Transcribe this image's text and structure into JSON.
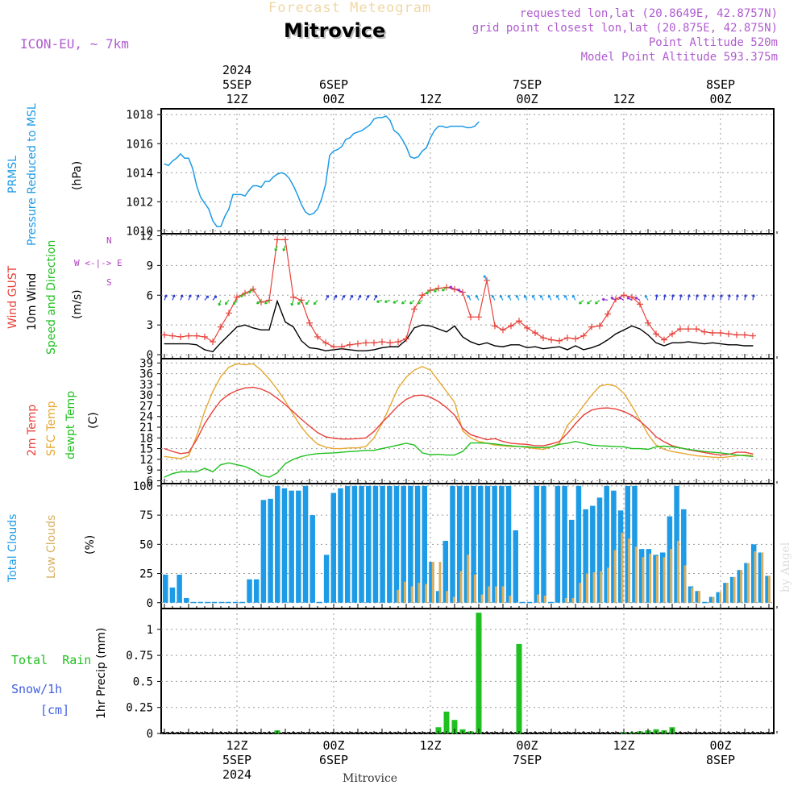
{
  "header": {
    "product_title": "Forecast Meteogram",
    "location_title": "Mitrovice",
    "model": "ICON-EU, ~ 7km",
    "requested": "requested lon,lat (20.8649E, 42.8757N)",
    "grid_point": "grid point closest lon,lat (20.875E, 42.875N)",
    "point_altitude": "Point Altitude 520m",
    "model_altitude": "Model Point Altitude 593.375m",
    "watermark": "by Angel",
    "footer_location": "Mitrovice"
  },
  "colors": {
    "pressure": "#1e9be6",
    "gust": "#e8413a",
    "wind": "#000000",
    "temp2m": "#e8413a",
    "sfc": "#e6a833",
    "dewpt": "#20c020",
    "total_clouds": "#1e9be6",
    "low_clouds": "#d8b060",
    "rain": "#20c020",
    "snow": "#4060e0",
    "direction_legend": "#b040c0",
    "grid": "#999999"
  },
  "time_axis": {
    "top_labels": [
      {
        "slot": 9,
        "lines": [
          "2024",
          "5SEP",
          "12Z"
        ]
      },
      {
        "slot": 21,
        "lines": [
          "6SEP",
          "00Z"
        ]
      },
      {
        "slot": 33,
        "lines": [
          "12Z"
        ]
      },
      {
        "slot": 45,
        "lines": [
          "7SEP",
          "00Z"
        ]
      },
      {
        "slot": 57,
        "lines": [
          "12Z"
        ]
      },
      {
        "slot": 69,
        "lines": [
          "8SEP",
          "00Z"
        ]
      }
    ],
    "bottom_labels": [
      {
        "slot": 9,
        "lines": [
          "12Z",
          "5SEP",
          "2024"
        ]
      },
      {
        "slot": 21,
        "lines": [
          "00Z",
          "6SEP"
        ]
      },
      {
        "slot": 33,
        "lines": [
          "12Z"
        ]
      },
      {
        "slot": 45,
        "lines": [
          "00Z",
          "7SEP"
        ]
      },
      {
        "slot": 57,
        "lines": [
          "12Z"
        ]
      },
      {
        "slot": 69,
        "lines": [
          "00Z",
          "8SEP"
        ]
      }
    ]
  },
  "panels": {
    "pressure": {
      "labels": [
        "PRMSL",
        "Pressure Reduced to MSL",
        "(hPa)"
      ]
    },
    "wind": {
      "labels": [
        "Wind GUST",
        "10m Wind",
        "Speed and Direction",
        "(m/s)"
      ],
      "compass": [
        "W <-|-> E",
        "N",
        "S"
      ]
    },
    "temp": {
      "labels": [
        "2m Temp",
        "SFC Temp",
        "dewpt Temp",
        "(C)"
      ]
    },
    "clouds": {
      "labels": [
        "Total Clouds",
        "Low Clouds",
        "(%)"
      ]
    },
    "precip": {
      "labels": [
        "Total  Rain",
        "Snow/1h",
        "[cm]",
        "1hr Precip (mm)"
      ]
    }
  },
  "chart_data": [
    {
      "type": "line",
      "title": "PRMSL Pressure Reduced to MSL",
      "ylabel": "(hPa)",
      "ylim": [
        1009.8,
        1018.4
      ],
      "yticks": [
        1010,
        1012,
        1014,
        1016,
        1018
      ],
      "x_step_hours": 1,
      "grid": true,
      "series": [
        {
          "name": "PRMSL",
          "x_slot_start": 0,
          "x_slot_step": 0.5,
          "values": [
            1014.6,
            1014.5,
            1014.8,
            1015.0,
            1015.3,
            1015.0,
            1015.0,
            1014.3,
            1013.1,
            1012.3,
            1011.9,
            1011.5,
            1010.7,
            1010.3,
            1010.3,
            1011.0,
            1011.5,
            1012.5,
            1012.5,
            1012.5,
            1012.4,
            1012.8,
            1013.1,
            1013.1,
            1013.0,
            1013.4,
            1013.4,
            1013.7,
            1013.9,
            1014.0,
            1013.9,
            1013.6,
            1013.1,
            1012.5,
            1011.8,
            1011.3,
            1011.1,
            1011.2,
            1011.5,
            1012.2,
            1013.2,
            1015.2,
            1015.5,
            1015.6,
            1015.8,
            1016.3,
            1016.4,
            1016.7,
            1016.8,
            1016.9,
            1017.1,
            1017.3,
            1017.7,
            1017.8,
            1017.8,
            1017.9,
            1017.6,
            1016.9,
            1016.7,
            1016.3,
            1015.8,
            1015.1,
            1015.0,
            1015.1,
            1015.5,
            1015.7,
            1016.4,
            1016.9,
            1017.2,
            1017.2,
            1017.1,
            1017.2,
            1017.2,
            1017.2,
            1017.2,
            1017.1,
            1017.1,
            1017.2,
            1017.5
          ]
        }
      ]
    },
    {
      "type": "line",
      "title": "Wind GUST / 10m Wind Speed and Direction",
      "ylabel": "(m/s)",
      "ylim": [
        -0.4,
        12.2
      ],
      "yticks": [
        0,
        3,
        6,
        9,
        12
      ],
      "grid": true,
      "series": [
        {
          "name": "Wind GUST",
          "x_slot_start": 0,
          "x_slot_step": 1,
          "values": [
            2.0,
            1.9,
            1.8,
            1.9,
            1.9,
            1.8,
            1.3,
            2.8,
            4.2,
            5.8,
            6.2,
            6.6,
            5.3,
            5.5,
            11.6,
            11.6,
            5.8,
            5.5,
            3.2,
            1.8,
            1.2,
            0.8,
            0.8,
            1.0,
            1.1,
            1.2,
            1.2,
            1.3,
            1.2,
            1.3,
            1.6,
            4.6,
            6.0,
            6.5,
            6.7,
            6.8,
            6.6,
            6.3,
            3.8,
            3.8,
            7.5,
            2.9,
            2.5,
            2.9,
            3.4,
            2.7,
            2.2,
            1.7,
            1.5,
            1.4,
            1.7,
            1.6,
            1.9,
            2.8,
            2.9,
            4.1,
            5.6,
            6.0,
            5.8,
            5.1,
            3.2,
            2.1,
            1.5,
            2.1,
            2.6,
            2.6,
            2.6,
            2.3,
            2.2,
            2.2,
            2.1,
            2.0,
            2.0,
            1.9
          ]
        },
        {
          "name": "10m Wind",
          "x_slot_start": 0,
          "x_slot_step": 1,
          "values": [
            1.1,
            1.1,
            1.1,
            1.1,
            1.0,
            0.5,
            0.3,
            1.2,
            2.0,
            2.8,
            3.0,
            2.7,
            2.5,
            2.5,
            5.4,
            3.3,
            2.8,
            1.4,
            0.7,
            0.6,
            0.4,
            0.5,
            0.6,
            0.5,
            0.4,
            0.4,
            0.5,
            0.7,
            0.8,
            0.8,
            1.5,
            2.7,
            3.0,
            2.9,
            2.6,
            2.3,
            2.9,
            1.8,
            1.3,
            1.0,
            1.2,
            0.9,
            0.8,
            1.0,
            1.0,
            0.7,
            0.8,
            0.6,
            0.7,
            0.8,
            0.5,
            0.9,
            0.5,
            0.7,
            1.0,
            1.5,
            2.1,
            2.5,
            2.9,
            2.6,
            2.0,
            1.2,
            0.9,
            1.2,
            1.2,
            1.3,
            1.2,
            1.1,
            1.2,
            1.1,
            1.0,
            1.0,
            0.9,
            0.9
          ]
        }
      ]
    },
    {
      "type": "line",
      "title": "2m Temp / SFC Temp / dewpt Temp",
      "ylabel": "(C)",
      "ylim": [
        5.2,
        40.2
      ],
      "yticks": [
        6,
        9,
        12,
        15,
        18,
        21,
        24,
        27,
        30,
        33,
        36,
        39
      ],
      "grid": true,
      "series": [
        {
          "name": "2m Temp",
          "x_slot_start": 0,
          "x_slot_step": 1,
          "values": [
            15.0,
            14.2,
            13.6,
            13.9,
            17.5,
            22.0,
            25.5,
            28.5,
            30.2,
            31.3,
            32.0,
            32.2,
            31.7,
            30.7,
            29.1,
            27.3,
            25.3,
            23.2,
            21.3,
            19.5,
            18.3,
            17.9,
            17.7,
            17.7,
            17.8,
            18.0,
            19.8,
            22.3,
            24.6,
            27.0,
            28.8,
            29.8,
            30.0,
            29.4,
            28.2,
            26.5,
            24.4,
            20.7,
            18.9,
            18.2,
            17.5,
            17.8,
            17.0,
            16.5,
            16.3,
            16.2,
            15.8,
            15.8,
            16.3,
            17.0,
            19.3,
            22.0,
            24.4,
            25.8,
            26.3,
            26.4,
            26.1,
            25.4,
            24.3,
            22.7,
            20.7,
            18.3,
            16.9,
            15.8,
            15.2,
            14.7,
            14.3,
            13.9,
            13.5,
            13.2,
            13.4,
            14.0,
            14.0,
            13.5
          ]
        },
        {
          "name": "SFC Temp",
          "x_slot_start": 0,
          "x_slot_step": 1,
          "values": [
            12.8,
            12.5,
            12.2,
            13.0,
            18.5,
            25.5,
            31.0,
            35.2,
            37.8,
            38.8,
            38.5,
            38.8,
            37.0,
            34.5,
            31.6,
            28.3,
            24.5,
            21.0,
            18.3,
            16.3,
            15.4,
            15.0,
            15.0,
            15.2,
            15.2,
            15.6,
            18.0,
            22.0,
            27.0,
            32.0,
            35.0,
            37.0,
            38.0,
            37.0,
            34.0,
            31.0,
            28.0,
            20.0,
            18.0,
            17.0,
            16.5,
            16.0,
            15.8,
            15.6,
            15.6,
            15.3,
            15.0,
            14.8,
            15.5,
            16.5,
            21.5,
            24.0,
            27.0,
            30.0,
            32.5,
            33.0,
            32.5,
            30.5,
            27.0,
            23.0,
            19.0,
            16.0,
            14.8,
            14.2,
            13.8,
            13.4,
            13.0,
            12.8,
            12.6,
            12.5,
            12.7,
            13.0,
            13.2,
            13.0
          ]
        },
        {
          "name": "dewpt Temp",
          "x_slot_start": 0,
          "x_slot_step": 1,
          "values": [
            7.0,
            8.0,
            8.5,
            8.5,
            8.5,
            9.5,
            8.5,
            10.5,
            11.0,
            10.5,
            10.0,
            9.0,
            7.5,
            7.0,
            8.2,
            10.8,
            12.0,
            12.8,
            13.3,
            13.6,
            13.7,
            13.8,
            14.0,
            14.2,
            14.3,
            14.5,
            14.5,
            15.0,
            15.5,
            16.0,
            16.5,
            16.0,
            13.8,
            13.3,
            13.4,
            13.2,
            13.2,
            14.2,
            16.6,
            16.6,
            16.5,
            16.3,
            16.0,
            15.8,
            15.6,
            15.5,
            15.3,
            15.3,
            15.5,
            16.2,
            16.5,
            17.0,
            16.5,
            16.0,
            15.8,
            15.7,
            15.6,
            15.5,
            15.0,
            15.0,
            14.8,
            15.5,
            15.7,
            15.5,
            15.2,
            14.8,
            14.5,
            14.2,
            14.0,
            13.8,
            13.5,
            13.2,
            13.0,
            12.8
          ]
        }
      ]
    },
    {
      "type": "bar",
      "title": "Total Clouds / Low Clouds",
      "ylabel": "(%)",
      "ylim": [
        -5,
        102
      ],
      "yticks": [
        0,
        25,
        50,
        75,
        100
      ],
      "grid": true,
      "series": [
        {
          "name": "Total Clouds",
          "x_slot_start": 0,
          "x_slot_step": 1,
          "values": [
            24,
            13,
            24,
            4,
            0,
            0,
            0,
            0,
            0,
            0,
            0,
            0,
            20,
            20,
            88,
            89,
            100,
            98,
            96,
            96,
            100,
            75,
            0,
            41,
            94,
            98,
            100,
            100,
            100,
            100,
            100,
            100,
            100,
            100,
            100,
            100,
            100,
            100,
            35,
            10,
            53,
            100,
            100,
            100,
            100,
            100,
            100,
            100,
            100,
            100,
            62,
            0,
            0,
            100,
            100,
            0,
            100,
            100,
            71,
            100,
            80,
            83,
            90,
            100,
            96,
            79,
            100,
            100,
            46,
            46,
            41,
            43,
            74,
            100,
            80,
            14,
            10,
            0,
            5,
            9,
            17,
            22,
            28,
            34,
            50,
            43,
            23
          ]
        },
        {
          "name": "Low Clouds",
          "x_slot_start": 0,
          "x_slot_step": 1,
          "values": [
            0,
            0,
            0,
            0,
            0,
            0,
            0,
            0,
            0,
            0,
            0,
            0,
            0,
            0,
            0,
            0,
            0,
            0,
            0,
            0,
            0,
            0,
            0,
            0,
            0,
            0,
            0,
            0,
            0,
            0,
            0,
            0,
            0,
            11,
            18,
            14,
            17,
            16,
            35,
            35,
            10,
            5,
            27,
            41,
            24,
            7,
            14,
            14,
            14,
            6,
            0,
            0,
            0,
            7,
            6,
            0,
            0,
            4,
            4,
            17,
            25,
            26,
            27,
            30,
            45,
            60,
            55,
            48,
            39,
            42,
            40,
            39,
            46,
            53,
            32,
            13,
            10,
            0,
            5,
            9,
            17,
            22,
            28,
            34,
            44,
            43,
            23
          ]
        }
      ]
    },
    {
      "type": "bar",
      "title": "Total Rain / Snow/1h",
      "ylabel": "1hr Precip (mm)",
      "ylim": [
        0,
        1.2
      ],
      "yticks": [
        0,
        0.25,
        0.5,
        0.75,
        1
      ],
      "grid": true,
      "series": [
        {
          "name": "Total Rain",
          "x_slot_start": 0,
          "x_slot_step": 1,
          "values": [
            0,
            0,
            0,
            0,
            0,
            0,
            0,
            0,
            0,
            0,
            0,
            0,
            0,
            0,
            0.03,
            0,
            0,
            0,
            0,
            0,
            0,
            0,
            0,
            0,
            0,
            0,
            0,
            0,
            0,
            0,
            0,
            0,
            0,
            0,
            0.06,
            0.21,
            0.13,
            0.04,
            0.02,
            1.16,
            0,
            0,
            0,
            0,
            0.86,
            0,
            0,
            0,
            0,
            0,
            0,
            0,
            0,
            0,
            0,
            0,
            0,
            0.01,
            0.01,
            0.02,
            0.03,
            0.04,
            0.03,
            0.06,
            0,
            0,
            0,
            0,
            0,
            0,
            0,
            0,
            0,
            0
          ]
        },
        {
          "name": "Snow/1h",
          "x_slot_start": 0,
          "x_slot_step": 1,
          "values": [
            0,
            0,
            0,
            0,
            0,
            0,
            0,
            0,
            0,
            0,
            0,
            0,
            0,
            0,
            0,
            0,
            0,
            0,
            0,
            0,
            0,
            0,
            0,
            0,
            0,
            0,
            0,
            0,
            0,
            0,
            0,
            0,
            0,
            0,
            0,
            0,
            0,
            0,
            0,
            0,
            0,
            0,
            0,
            0,
            0,
            0,
            0,
            0,
            0,
            0,
            0,
            0,
            0,
            0,
            0,
            0,
            0,
            0,
            0,
            0,
            0,
            0,
            0,
            0,
            0,
            0,
            0,
            0,
            0,
            0,
            0,
            0,
            0,
            0
          ]
        }
      ]
    }
  ],
  "wind_direction_deg": [
    20,
    20,
    20,
    20,
    20,
    40,
    40,
    200,
    220,
    220,
    230,
    230,
    230,
    230,
    200,
    200,
    200,
    220,
    220,
    220,
    30,
    30,
    30,
    30,
    30,
    30,
    30,
    250,
    250,
    240,
    230,
    230,
    230,
    230,
    230,
    230,
    300,
    300,
    330,
    330,
    330,
    330,
    330,
    330,
    330,
    330,
    330,
    330,
    330,
    330,
    330,
    330,
    230,
    230,
    230,
    280,
    300,
    300,
    300,
    300,
    330,
    10,
    10,
    10,
    10,
    10,
    10,
    10,
    10,
    10,
    10,
    10,
    10,
    10
  ]
}
